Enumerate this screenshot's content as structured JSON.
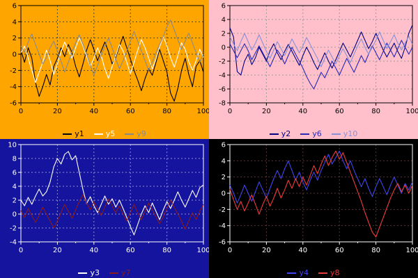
{
  "chart_data": [
    {
      "type": "line",
      "panel": "top-left",
      "title": "",
      "xlabel": "",
      "ylabel": "",
      "xlim": [
        0,
        100
      ],
      "ylim": [
        -6,
        6
      ],
      "xticks": [
        0,
        20,
        40,
        60,
        80,
        100
      ],
      "yticks": [
        -6,
        -4,
        -2,
        0,
        2,
        4,
        6
      ],
      "grid": "dashed",
      "legend_position": "bottom",
      "x_step": 2,
      "colors": {
        "panel_bg": "#FFA500",
        "grid": "#4a4a30",
        "axis": "#000000",
        "text": "#000000"
      },
      "series": [
        {
          "name": "y1",
          "color": "#000000",
          "values": [
            0.5,
            -1.0,
            0.8,
            -0.5,
            -3.5,
            -5.2,
            -4.0,
            -2.5,
            -3.8,
            -1.5,
            -0.5,
            0.8,
            -0.3,
            1.2,
            0.2,
            -1.5,
            -2.8,
            -1.2,
            0.5,
            1.8,
            0.6,
            -0.8,
            0.4,
            1.5,
            0.3,
            -1.2,
            -0.4,
            1.0,
            2.2,
            0.8,
            -0.6,
            -2.0,
            -3.2,
            -4.5,
            -3.0,
            -1.8,
            -2.6,
            -1.0,
            0.6,
            -0.8,
            -2.2,
            -4.8,
            -5.8,
            -4.2,
            -2.0,
            -0.5,
            -2.5,
            -4.0,
            -1.5,
            -0.8,
            -2.2
          ]
        },
        {
          "name": "y5",
          "color": "#FFFFFF",
          "values": [
            0.2,
            1.0,
            -0.5,
            -2.0,
            -3.5,
            -2.2,
            -1.0,
            0.5,
            -0.8,
            -2.5,
            -1.2,
            0.3,
            1.5,
            0.5,
            -0.5,
            0.8,
            2.0,
            1.0,
            -0.3,
            -1.5,
            -0.5,
            0.8,
            -0.2,
            -1.8,
            -3.0,
            -1.5,
            -0.2,
            1.2,
            0.4,
            -1.0,
            -2.4,
            -1.0,
            0.5,
            1.8,
            0.8,
            -0.5,
            -1.8,
            -0.6,
            0.9,
            2.2,
            1.0,
            -0.4,
            -1.6,
            -0.2,
            1.4,
            0.6,
            -0.9,
            -2.0,
            -0.8,
            0.6,
            -0.4
          ]
        },
        {
          "name": "y9",
          "color": "#8a8a8a",
          "values": [
            1.0,
            0.2,
            1.5,
            2.5,
            1.2,
            0.0,
            -1.2,
            -0.4,
            0.8,
            1.6,
            0.4,
            -0.9,
            -2.2,
            -1.0,
            0.3,
            1.4,
            2.4,
            1.2,
            0.0,
            -1.4,
            -2.6,
            -1.4,
            -0.2,
            1.0,
            2.0,
            0.8,
            -0.6,
            -1.8,
            -0.8,
            0.4,
            1.6,
            2.8,
            1.6,
            0.4,
            -0.8,
            -2.0,
            -1.0,
            0.2,
            1.2,
            2.2,
            3.4,
            4.2,
            3.0,
            1.8,
            0.6,
            1.6,
            2.6,
            1.4,
            0.2,
            -1.0,
            0.0
          ]
        }
      ]
    },
    {
      "type": "line",
      "panel": "top-right",
      "title": "",
      "xlabel": "",
      "ylabel": "",
      "xlim": [
        0,
        100
      ],
      "ylim": [
        -8,
        6
      ],
      "xticks": [
        0,
        20,
        40,
        60,
        80,
        100
      ],
      "yticks": [
        -8,
        -6,
        -4,
        -2,
        0,
        2,
        4,
        6
      ],
      "grid": "dashed",
      "legend_position": "bottom",
      "x_step": 2,
      "colors": {
        "panel_bg": "#FFC0CB",
        "grid": "#9a9a9a",
        "axis": "#000000",
        "text": "#000000"
      },
      "series": [
        {
          "name": "y2",
          "color": "#000080",
          "values": [
            2.8,
            1.5,
            -3.5,
            -4.0,
            -2.0,
            -1.0,
            -2.5,
            -1.5,
            0.0,
            -1.0,
            -2.0,
            -0.5,
            0.5,
            -0.8,
            -1.8,
            -0.6,
            0.4,
            -0.6,
            -1.6,
            -2.6,
            -1.2,
            0.0,
            -1.0,
            -2.2,
            -3.2,
            -2.0,
            -0.8,
            -2.0,
            -3.0,
            -1.8,
            -0.6,
            0.6,
            -0.4,
            -1.4,
            -0.2,
            1.0,
            2.2,
            1.0,
            -0.2,
            0.8,
            2.0,
            0.8,
            -0.4,
            -1.4,
            -0.4,
            0.6,
            -0.6,
            -1.6,
            0.0,
            2.0,
            3.2
          ]
        },
        {
          "name": "y6",
          "color": "#2a2ab8",
          "values": [
            0.5,
            -0.5,
            -1.5,
            -0.5,
            0.5,
            -0.5,
            -1.8,
            -0.8,
            0.2,
            -0.8,
            -1.8,
            -2.8,
            -1.6,
            -0.4,
            -1.2,
            -2.4,
            -1.2,
            0.0,
            -1.0,
            -2.0,
            -3.0,
            -4.2,
            -5.2,
            -6.0,
            -4.8,
            -3.6,
            -4.4,
            -3.2,
            -2.0,
            -3.0,
            -4.0,
            -2.8,
            -1.6,
            -2.6,
            -3.6,
            -2.4,
            -1.2,
            -2.2,
            -1.0,
            0.2,
            -0.8,
            -1.8,
            -0.6,
            0.6,
            -0.4,
            -1.4,
            -0.2,
            1.0,
            0.0,
            -1.0,
            0.0
          ]
        },
        {
          "name": "y10",
          "color": "#8890d8",
          "values": [
            1.5,
            0.5,
            -0.5,
            0.8,
            2.0,
            0.8,
            -0.4,
            0.6,
            1.8,
            0.6,
            -0.6,
            -1.6,
            -0.4,
            0.8,
            -0.2,
            -1.2,
            0.0,
            1.2,
            0.2,
            -0.8,
            0.2,
            1.4,
            0.4,
            -0.6,
            -1.6,
            -2.8,
            -1.6,
            -0.4,
            -1.4,
            -2.4,
            -1.2,
            -0.2,
            -1.2,
            -2.2,
            -1.0,
            0.2,
            1.2,
            0.0,
            -1.0,
            0.0,
            1.0,
            2.2,
            1.0,
            -0.2,
            0.8,
            1.8,
            0.6,
            -0.4,
            0.6,
            1.6,
            0.4
          ]
        }
      ]
    },
    {
      "type": "line",
      "panel": "bottom-left",
      "title": "",
      "xlabel": "",
      "ylabel": "",
      "xlim": [
        0,
        100
      ],
      "ylim": [
        -4,
        10
      ],
      "xticks": [
        0,
        20,
        40,
        60,
        80,
        100
      ],
      "yticks": [
        -4,
        -2,
        0,
        2,
        4,
        6,
        8,
        10
      ],
      "grid": "dashed",
      "legend_position": "bottom",
      "x_step": 2,
      "colors": {
        "panel_bg": "#14149E",
        "grid": "#8f8fd0",
        "axis": "#FFFFFF",
        "text": "#FFFFFF"
      },
      "series": [
        {
          "name": "y3",
          "color": "#FFFFFF",
          "values": [
            2.0,
            1.2,
            2.4,
            1.4,
            2.6,
            3.6,
            2.6,
            3.2,
            4.6,
            6.8,
            8.0,
            7.2,
            8.6,
            9.0,
            7.8,
            8.4,
            6.0,
            3.5,
            1.5,
            2.5,
            1.2,
            0.2,
            1.4,
            2.6,
            1.4,
            2.2,
            1.0,
            2.0,
            0.8,
            -0.5,
            -1.8,
            -3.0,
            -1.5,
            0.0,
            1.2,
            0.2,
            1.6,
            0.4,
            -0.8,
            0.6,
            1.8,
            0.8,
            2.0,
            3.2,
            2.0,
            1.0,
            2.2,
            3.4,
            2.4,
            3.8,
            4.2
          ]
        },
        {
          "name": "y7",
          "color": "#8B1A1A",
          "values": [
            0.5,
            -0.5,
            0.8,
            -0.2,
            -1.2,
            -0.2,
            1.0,
            0.0,
            -1.0,
            -2.0,
            -1.0,
            0.2,
            1.4,
            0.4,
            -0.6,
            0.6,
            1.8,
            2.8,
            1.6,
            0.6,
            1.8,
            0.8,
            -0.2,
            1.0,
            2.2,
            1.2,
            0.2,
            1.2,
            0.0,
            -1.0,
            0.2,
            1.4,
            0.2,
            -0.8,
            0.4,
            1.6,
            0.6,
            -0.4,
            -1.4,
            -0.4,
            0.8,
            2.0,
            1.0,
            0.0,
            -1.0,
            -2.2,
            -1.0,
            0.2,
            -0.8,
            0.4,
            1.4
          ]
        }
      ]
    },
    {
      "type": "line",
      "panel": "bottom-right",
      "title": "",
      "xlabel": "",
      "ylabel": "",
      "xlim": [
        0,
        100
      ],
      "ylim": [
        -6,
        6
      ],
      "xticks": [
        0,
        20,
        40,
        60,
        80,
        100
      ],
      "yticks": [
        -6,
        -4,
        -2,
        0,
        2,
        4,
        6
      ],
      "grid": "dashed",
      "legend_position": "bottom",
      "x_step": 2,
      "colors": {
        "panel_bg": "#000000",
        "grid": "#5a3535",
        "axis": "#FFFFFF",
        "text": "#FFFFFF"
      },
      "series": [
        {
          "name": "y4",
          "color": "#4444EE",
          "values": [
            1.0,
            0.0,
            -1.2,
            -0.2,
            1.0,
            0.0,
            -1.0,
            0.2,
            1.4,
            0.4,
            -0.6,
            0.6,
            1.8,
            2.8,
            1.8,
            3.0,
            4.0,
            2.8,
            1.6,
            2.6,
            1.4,
            0.4,
            1.6,
            2.6,
            1.6,
            2.8,
            3.8,
            4.8,
            3.6,
            4.4,
            5.2,
            4.0,
            3.0,
            4.0,
            2.8,
            1.8,
            0.8,
            1.8,
            0.6,
            -0.4,
            0.8,
            1.8,
            0.8,
            -0.2,
            1.0,
            2.0,
            1.0,
            0.0,
            1.2,
            0.4,
            1.4
          ]
        },
        {
          "name": "y8",
          "color": "#EE3B3B",
          "values": [
            0.5,
            -0.8,
            -2.0,
            -1.0,
            -2.2,
            -1.2,
            -0.2,
            -1.4,
            -2.6,
            -1.4,
            -0.4,
            -1.6,
            -0.6,
            0.6,
            -0.6,
            0.4,
            1.6,
            0.6,
            1.8,
            0.8,
            2.0,
            1.0,
            2.2,
            3.4,
            2.4,
            3.6,
            4.6,
            3.4,
            4.4,
            5.2,
            4.2,
            5.0,
            3.8,
            2.6,
            1.4,
            0.2,
            -1.0,
            -2.4,
            -3.6,
            -4.8,
            -5.4,
            -4.2,
            -3.0,
            -1.8,
            -0.6,
            0.4,
            1.2,
            0.2,
            1.0,
            0.0,
            1.0
          ]
        }
      ]
    }
  ]
}
